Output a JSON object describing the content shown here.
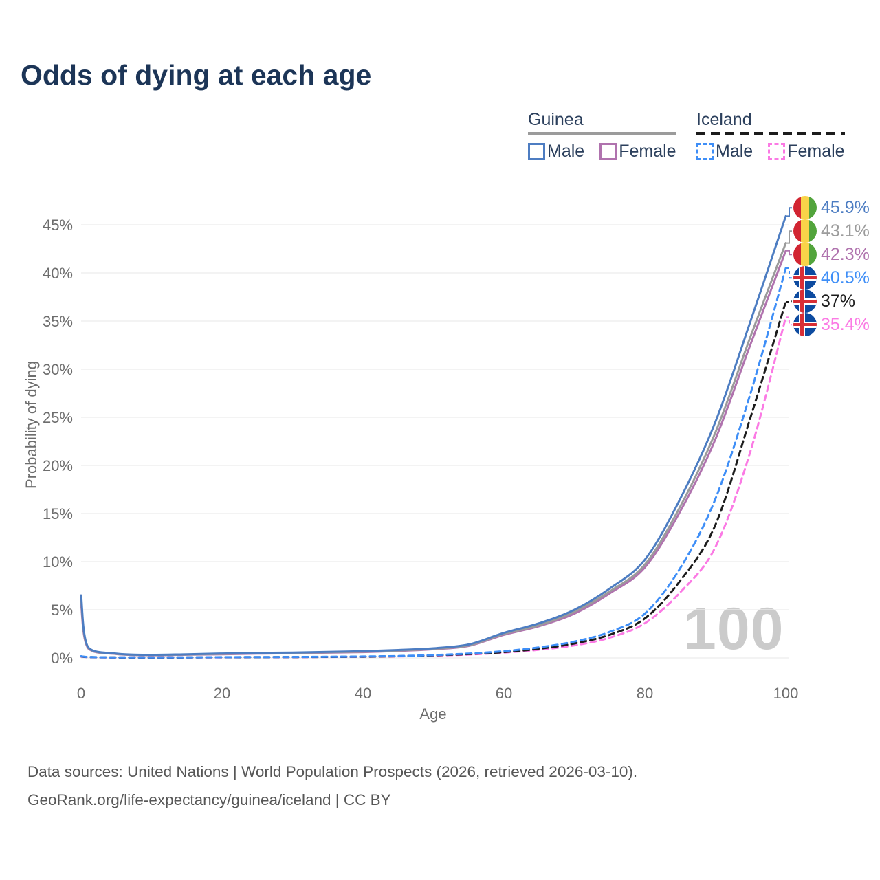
{
  "page": {
    "title": "Odds of dying at each age"
  },
  "legend": {
    "guinea": {
      "label": "Guinea",
      "male": "Male",
      "female": "Female"
    },
    "iceland": {
      "label": "Iceland",
      "male": "Male",
      "female": "Female"
    }
  },
  "footer": {
    "line1": "Data sources: United Nations | World Population Prospects (2026, retrieved 2026-03-10).",
    "line2": "GeoRank.org/life-expectancy/guinea/iceland | CC BY"
  },
  "flags": {
    "guinea": {
      "red": "#d22532",
      "yellow": "#f9d349",
      "green": "#52a43c"
    },
    "iceland": {
      "blue": "#0d4ba0",
      "cross": "#ffffff",
      "inner_cross": "#d82e35"
    }
  },
  "colors": {
    "title": "#1c3557",
    "axis_text": "#6d6d6d",
    "gridline": "#ececec",
    "watermark": "#cbcbcb"
  },
  "chart_data": {
    "type": "line",
    "title": "Odds of dying at each age",
    "xlabel": "Age",
    "ylabel": "Probability of dying",
    "xlim": [
      0,
      100
    ],
    "ylim": [
      0,
      47
    ],
    "grid": "horizontal-only",
    "legend_position": "top-right",
    "watermark": "100",
    "x_ticks": [
      {
        "value": 0,
        "label": "0"
      },
      {
        "value": 20,
        "label": "20"
      },
      {
        "value": 40,
        "label": "40"
      },
      {
        "value": 60,
        "label": "60"
      },
      {
        "value": 80,
        "label": "80"
      },
      {
        "value": 100,
        "label": "100"
      }
    ],
    "y_ticks": [
      {
        "value": 0,
        "label": "0%"
      },
      {
        "value": 5,
        "label": "5%"
      },
      {
        "value": 10,
        "label": "10%"
      },
      {
        "value": 15,
        "label": "15%"
      },
      {
        "value": 20,
        "label": "20%"
      },
      {
        "value": 25,
        "label": "25%"
      },
      {
        "value": 30,
        "label": "30%"
      },
      {
        "value": 35,
        "label": "35%"
      },
      {
        "value": 40,
        "label": "40%"
      },
      {
        "value": 45,
        "label": "45%"
      }
    ],
    "x": [
      0,
      1,
      5,
      10,
      15,
      20,
      25,
      30,
      35,
      40,
      45,
      50,
      55,
      60,
      65,
      70,
      75,
      80,
      85,
      90,
      95,
      100
    ],
    "series": [
      {
        "id": "guinea-male",
        "name": "Guinea Male",
        "country": "guinea",
        "dash": "solid",
        "color": "#4d7dc2",
        "end_label": "45.9%",
        "flag": "guinea",
        "values": [
          6.5,
          1.1,
          0.45,
          0.32,
          0.38,
          0.46,
          0.52,
          0.56,
          0.62,
          0.7,
          0.82,
          1.0,
          1.4,
          2.6,
          3.6,
          5.0,
          7.2,
          10.2,
          16.5,
          24.5,
          35.0,
          45.9
        ]
      },
      {
        "id": "guinea-both",
        "name": "Guinea Both sexes",
        "country": "guinea",
        "dash": "solid",
        "color": "#9b9b9b",
        "end_label": "43.1%",
        "flag": "guinea",
        "values": [
          6.1,
          1.05,
          0.42,
          0.3,
          0.35,
          0.42,
          0.48,
          0.52,
          0.58,
          0.65,
          0.77,
          0.95,
          1.3,
          2.5,
          3.4,
          4.8,
          6.9,
          9.7,
          15.7,
          23.4,
          33.4,
          43.1
        ]
      },
      {
        "id": "guinea-female",
        "name": "Guinea Female",
        "country": "guinea",
        "dash": "solid",
        "color": "#b073ae",
        "end_label": "42.3%",
        "flag": "guinea",
        "values": [
          5.6,
          1.0,
          0.4,
          0.28,
          0.33,
          0.38,
          0.44,
          0.48,
          0.54,
          0.6,
          0.72,
          0.9,
          1.25,
          2.4,
          3.3,
          4.6,
          6.7,
          9.4,
          15.2,
          22.7,
          32.6,
          42.3
        ]
      },
      {
        "id": "iceland-male",
        "name": "Iceland Male",
        "country": "iceland",
        "dash": "dashed",
        "color": "#3e8ef7",
        "end_label": "40.5%",
        "flag": "iceland",
        "values": [
          0.18,
          0.1,
          0.05,
          0.05,
          0.06,
          0.08,
          0.09,
          0.1,
          0.12,
          0.15,
          0.2,
          0.3,
          0.45,
          0.7,
          1.1,
          1.7,
          2.7,
          4.6,
          9.3,
          16.5,
          27.5,
          40.5
        ]
      },
      {
        "id": "iceland-both",
        "name": "Iceland Both sexes",
        "country": "iceland",
        "dash": "dashed",
        "color": "#1c1c1c",
        "end_label": "37%",
        "flag": "iceland",
        "values": [
          0.16,
          0.09,
          0.05,
          0.04,
          0.05,
          0.07,
          0.08,
          0.09,
          0.11,
          0.13,
          0.18,
          0.27,
          0.4,
          0.6,
          0.95,
          1.5,
          2.4,
          4.1,
          8.0,
          13.8,
          25.0,
          37.0
        ]
      },
      {
        "id": "iceland-female",
        "name": "Iceland Female",
        "country": "iceland",
        "dash": "dashed",
        "color": "#fb7ae4",
        "end_label": "35.4%",
        "flag": "iceland",
        "values": [
          0.14,
          0.08,
          0.04,
          0.04,
          0.05,
          0.06,
          0.07,
          0.08,
          0.1,
          0.12,
          0.16,
          0.24,
          0.35,
          0.55,
          0.85,
          1.3,
          2.1,
          3.6,
          6.8,
          11.5,
          21.5,
          35.4
        ]
      }
    ]
  }
}
